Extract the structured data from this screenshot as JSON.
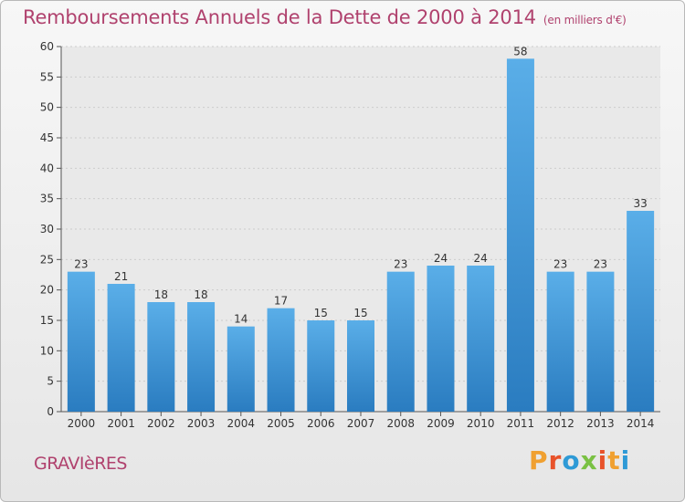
{
  "header": {
    "title": "Remboursements Annuels de la Dette de 2000 à 2014",
    "unit": "(en milliers d'€)"
  },
  "footer": {
    "town": "GRAVIèRES",
    "logo": "Proxiti"
  },
  "colors": {
    "title": "#b0426e",
    "bar_top": "#5aaee8",
    "bar_bottom": "#2a7cc0",
    "axis": "#555555",
    "grid": "#cccccc"
  },
  "chart_data": {
    "type": "bar",
    "title": "Remboursements Annuels de la Dette de 2000 à 2014",
    "xlabel": "",
    "ylabel": "",
    "ylim": [
      0,
      60
    ],
    "yticks": [
      0,
      5,
      10,
      15,
      20,
      25,
      30,
      35,
      40,
      45,
      50,
      55,
      60
    ],
    "grid": true,
    "categories": [
      "2000",
      "2001",
      "2002",
      "2003",
      "2004",
      "2005",
      "2006",
      "2007",
      "2008",
      "2009",
      "2010",
      "2011",
      "2012",
      "2013",
      "2014"
    ],
    "values": [
      23,
      21,
      18,
      18,
      14,
      17,
      15,
      15,
      23,
      24,
      24,
      58,
      23,
      23,
      33
    ]
  }
}
